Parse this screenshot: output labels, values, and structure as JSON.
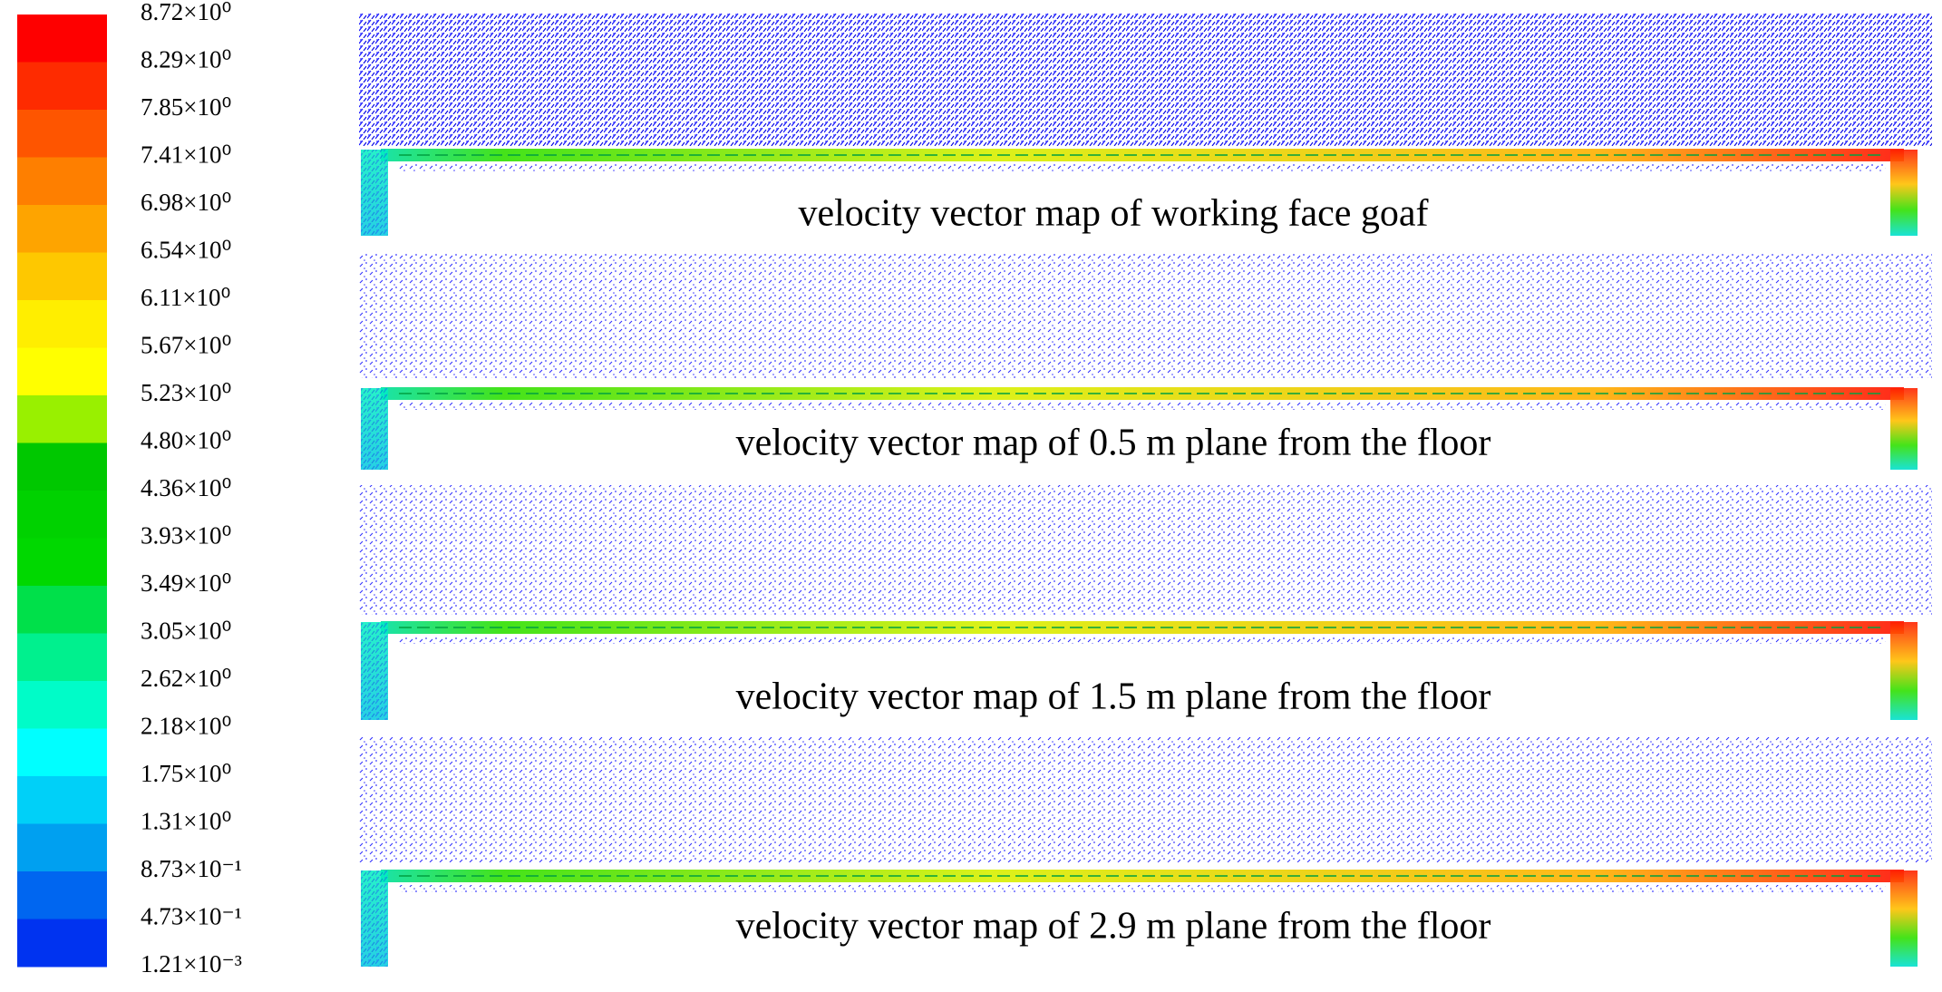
{
  "colorbar": {
    "labels": [
      "8.72×10⁰",
      "8.29×10⁰",
      "7.85×10⁰",
      "7.41×10⁰",
      "6.98×10⁰",
      "6.54×10⁰",
      "6.11×10⁰",
      "5.67×10⁰",
      "5.23×10⁰",
      "4.80×10⁰",
      "4.36×10⁰",
      "3.93×10⁰",
      "3.49×10⁰",
      "3.05×10⁰",
      "2.62×10⁰",
      "2.18×10⁰",
      "1.75×10⁰",
      "1.31×10⁰",
      "8.73×10⁻¹",
      "4.73×10⁻¹",
      "1.21×10⁻³"
    ],
    "colors": [
      "#fe0000",
      "#fe2b00",
      "#fe5500",
      "#fe7f00",
      "#fea400",
      "#fec800",
      "#ffee00",
      "#ffff00",
      "#99f000",
      "#00c800",
      "#00d200",
      "#00d800",
      "#00e04a",
      "#00f08e",
      "#00fcc8",
      "#00ffff",
      "#00d0f8",
      "#00a0f0",
      "#0066f0",
      "#0033f0",
      "#0000f8"
    ]
  },
  "panels": [
    {
      "caption": "velocity vector map of working face goaf"
    },
    {
      "caption": "velocity vector map of 0.5 m plane from the floor"
    },
    {
      "caption": "velocity vector map of 1.5 m plane from the floor"
    },
    {
      "caption": "velocity vector map of 2.9 m plane from the floor"
    }
  ]
}
